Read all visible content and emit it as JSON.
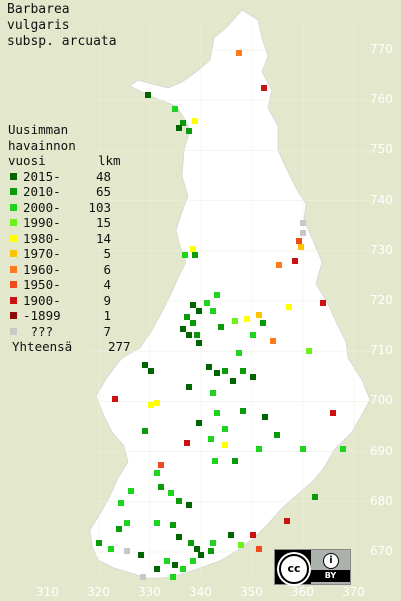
{
  "title": [
    "Barbarea",
    "vulgaris",
    "subsp. arcuata"
  ],
  "legend": {
    "heading": [
      "Uusimman",
      "havainnon"
    ],
    "col_label": "vuosi",
    "col_count": "lkm",
    "rows": [
      {
        "label": "2015-",
        "count": "48",
        "color": "#006400"
      },
      {
        "label": "2010-",
        "count": "65",
        "color": "#0a9a0a"
      },
      {
        "label": "2000-",
        "count": "103",
        "color": "#1fd41f"
      },
      {
        "label": "1990-",
        "count": "15",
        "color": "#6cf21a"
      },
      {
        "label": "1980-",
        "count": "14",
        "color": "#ffff00"
      },
      {
        "label": "1970-",
        "count": "5",
        "color": "#ffc400"
      },
      {
        "label": "1960-",
        "count": "6",
        "color": "#ff7a1a"
      },
      {
        "label": "1950-",
        "count": "4",
        "color": "#ee4b1a"
      },
      {
        "label": "1900-",
        "count": "9",
        "color": "#cc1111"
      },
      {
        "label": "-1899",
        "count": "1",
        "color": "#8b0a0a"
      },
      {
        "label": " ???",
        "count": "7",
        "color": "#c8c8c8"
      }
    ],
    "total_label": "Yhteensä",
    "total_count": "277"
  },
  "axis": {
    "y_ticks": [
      "770",
      "760",
      "750",
      "740",
      "730",
      "720",
      "710",
      "700",
      "690",
      "680",
      "670"
    ],
    "x_ticks": [
      "310",
      "320",
      "330",
      "340",
      "350",
      "360",
      "370"
    ]
  },
  "license": {
    "cc_text": "cc",
    "by_text": "BY",
    "person_icon": "person-icon"
  }
}
